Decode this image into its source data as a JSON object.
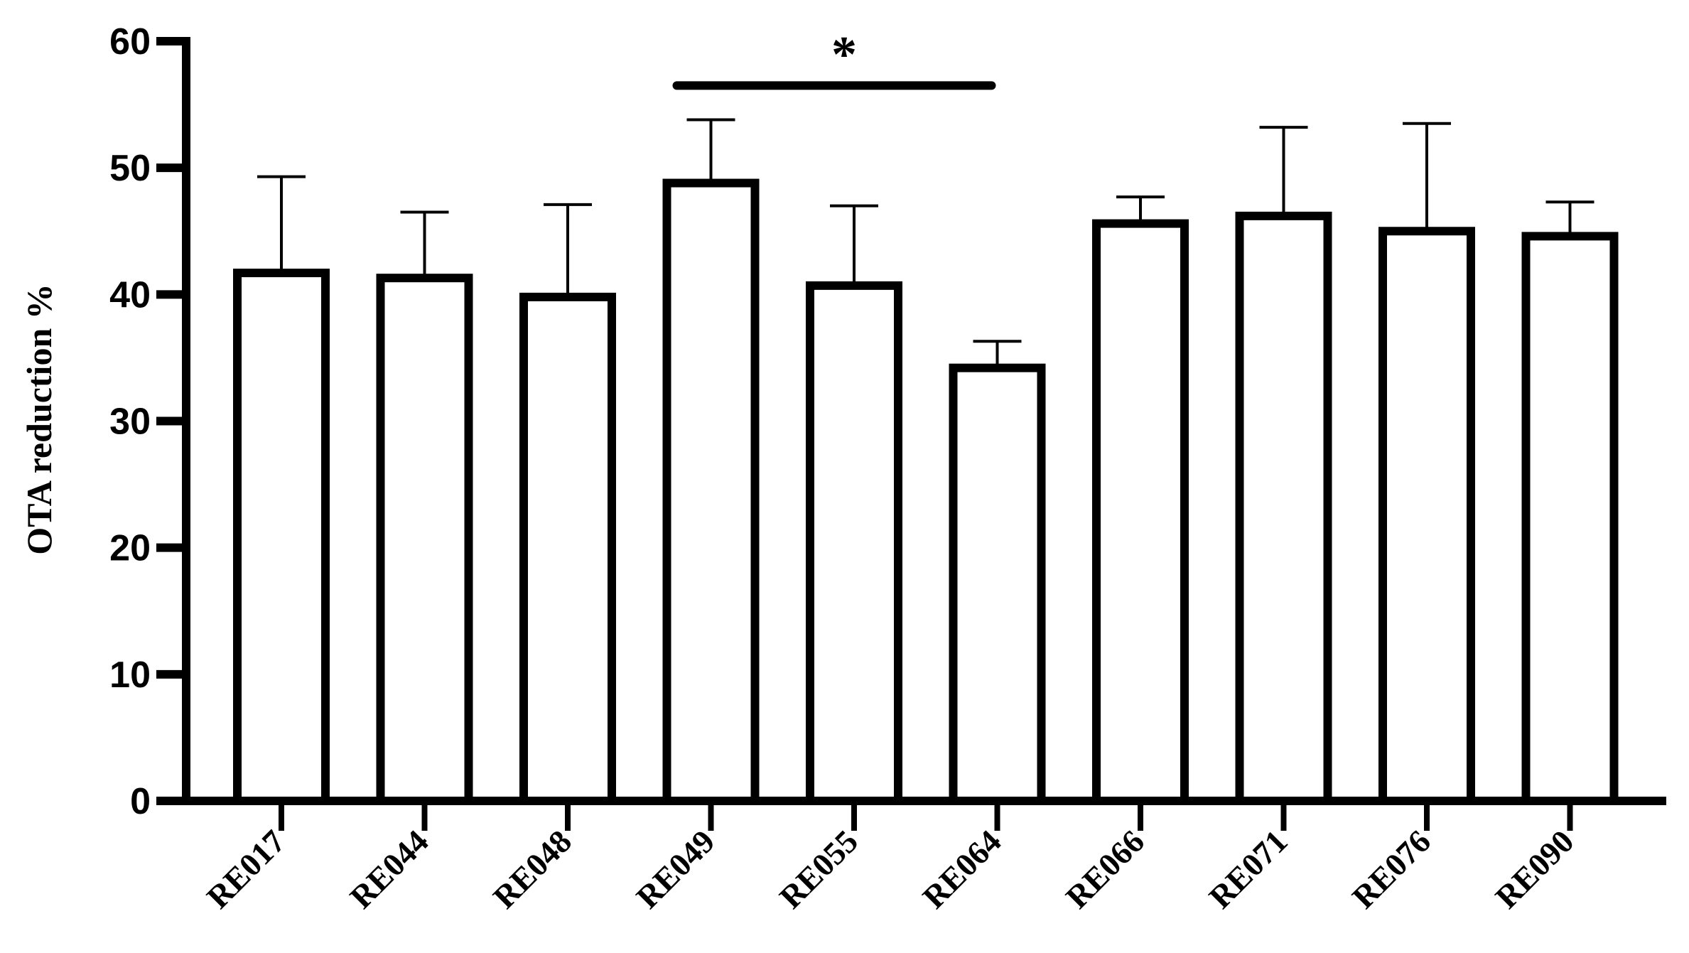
{
  "chart_data": {
    "type": "bar",
    "title": "",
    "xlabel": "",
    "ylabel": "OTA reduction %",
    "ylim": [
      0,
      60
    ],
    "yticks": [
      "0",
      "10",
      "20",
      "30",
      "40",
      "50",
      "60"
    ],
    "categories": [
      "RE017",
      "RE044",
      "RE048",
      "RE049",
      "RE055",
      "RE064",
      "RE066",
      "RE071",
      "RE076",
      "RE090"
    ],
    "values": [
      41.7,
      41.3,
      39.8,
      48.8,
      40.7,
      34.2,
      45.6,
      46.2,
      45.0,
      44.6
    ],
    "errors": [
      7.6,
      5.2,
      7.3,
      5.0,
      6.3,
      2.1,
      2.1,
      7.0,
      8.5,
      2.7
    ],
    "grid": false,
    "bar_fill": "#ffffff",
    "bar_stroke": "#000000",
    "significance": {
      "label": "*",
      "from_category": "RE049",
      "to_category": "RE064",
      "level": 56.5
    }
  }
}
